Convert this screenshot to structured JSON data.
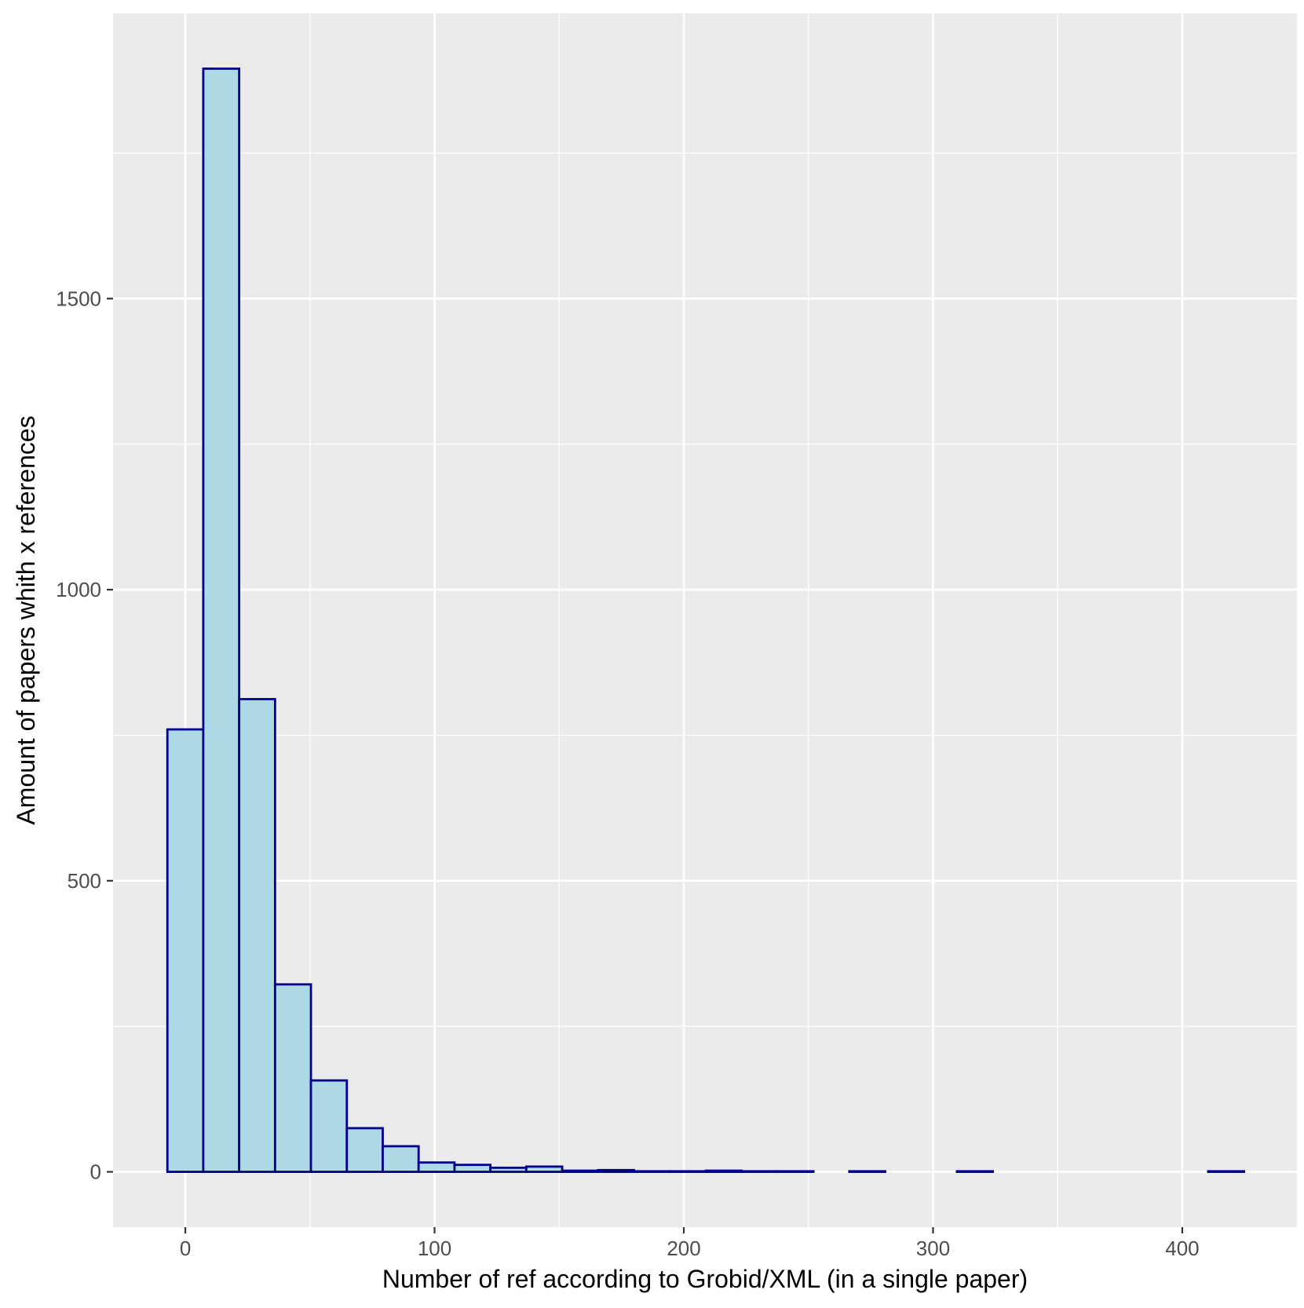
{
  "chart_data": {
    "type": "bar",
    "subtype": "histogram",
    "title": "",
    "xlabel": "Number of ref according to Grobid/XML (in a single paper)",
    "ylabel": "Amount of papers whith x references",
    "xlim": [
      -29,
      446
    ],
    "ylim": [
      -95,
      1990
    ],
    "x_ticks": [
      0,
      100,
      200,
      300,
      400
    ],
    "x_tick_labels": [
      "0",
      "100",
      "200",
      "300",
      "400"
    ],
    "y_ticks": [
      0,
      500,
      1000,
      1500
    ],
    "y_tick_labels": [
      "0",
      "500",
      "1000",
      "1500"
    ],
    "grid": true,
    "bin_width": 14.4,
    "bins": [
      {
        "x0": -7.2,
        "x1": 7.2,
        "count": 760
      },
      {
        "x0": 7.2,
        "x1": 21.6,
        "count": 1895
      },
      {
        "x0": 21.6,
        "x1": 36.0,
        "count": 812
      },
      {
        "x0": 36.0,
        "x1": 50.4,
        "count": 322
      },
      {
        "x0": 50.4,
        "x1": 64.8,
        "count": 157
      },
      {
        "x0": 64.8,
        "x1": 79.2,
        "count": 75
      },
      {
        "x0": 79.2,
        "x1": 93.6,
        "count": 44
      },
      {
        "x0": 93.6,
        "x1": 108.0,
        "count": 16
      },
      {
        "x0": 108.0,
        "x1": 122.4,
        "count": 12
      },
      {
        "x0": 122.4,
        "x1": 136.8,
        "count": 7
      },
      {
        "x0": 136.8,
        "x1": 151.2,
        "count": 9
      },
      {
        "x0": 151.2,
        "x1": 165.6,
        "count": 2
      },
      {
        "x0": 165.6,
        "x1": 180.0,
        "count": 3
      },
      {
        "x0": 180.0,
        "x1": 194.4,
        "count": 1
      },
      {
        "x0": 194.4,
        "x1": 208.8,
        "count": 1
      },
      {
        "x0": 208.8,
        "x1": 223.2,
        "count": 2
      },
      {
        "x0": 223.2,
        "x1": 237.6,
        "count": 1
      },
      {
        "x0": 237.6,
        "x1": 252.0,
        "count": 1
      },
      {
        "x0": 252.0,
        "x1": 266.4,
        "count": 0
      },
      {
        "x0": 266.4,
        "x1": 280.8,
        "count": 1
      },
      {
        "x0": 280.8,
        "x1": 295.2,
        "count": 0
      },
      {
        "x0": 295.2,
        "x1": 309.6,
        "count": 0
      },
      {
        "x0": 309.6,
        "x1": 324.0,
        "count": 1
      },
      {
        "x0": 324.0,
        "x1": 338.4,
        "count": 0
      },
      {
        "x0": 338.4,
        "x1": 352.8,
        "count": 0
      },
      {
        "x0": 352.8,
        "x1": 367.2,
        "count": 0
      },
      {
        "x0": 367.2,
        "x1": 381.6,
        "count": 0
      },
      {
        "x0": 381.6,
        "x1": 396.0,
        "count": 0
      },
      {
        "x0": 396.0,
        "x1": 410.4,
        "count": 0
      },
      {
        "x0": 410.4,
        "x1": 424.8,
        "count": 1
      }
    ],
    "colors": {
      "bar_fill": "#add8e6",
      "bar_outline": "#00008b",
      "panel_background": "#ebebeb",
      "grid": "#ffffff",
      "tick": "#333333"
    }
  }
}
